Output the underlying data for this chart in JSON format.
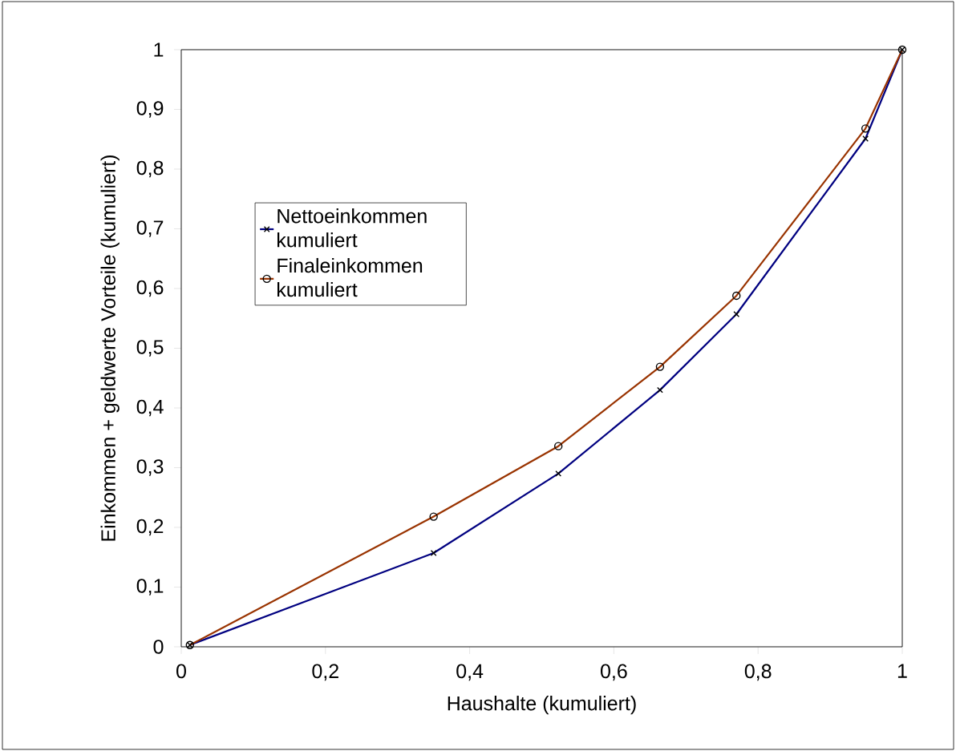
{
  "chart_data": {
    "type": "line",
    "xlabel": "Haushalte (kumuliert)",
    "ylabel": "Einkommen + geldwerte Vorteile (kumuliert)",
    "xlim": [
      0,
      1
    ],
    "ylim": [
      0,
      1
    ],
    "xticks": [
      0,
      {
        "value": 0.2,
        "label": "0,2"
      },
      {
        "value": 0.4,
        "label": "0,4"
      },
      {
        "value": 0.6,
        "label": "0,6"
      },
      {
        "value": 0.8,
        "label": "0,8"
      },
      1
    ],
    "yticks": [
      0,
      {
        "value": 0.1,
        "label": "0,1"
      },
      {
        "value": 0.2,
        "label": "0,2"
      },
      {
        "value": 0.3,
        "label": "0,3"
      },
      {
        "value": 0.4,
        "label": "0,4"
      },
      {
        "value": 0.5,
        "label": "0,5"
      },
      {
        "value": 0.6,
        "label": "0,6"
      },
      {
        "value": 0.7,
        "label": "0,7"
      },
      {
        "value": 0.8,
        "label": "0,8"
      },
      {
        "value": 0.9,
        "label": "0,9"
      },
      1
    ],
    "grid": false,
    "legend": "left",
    "line_style": "solid",
    "series": [
      {
        "name": "Nettoeinkommen kumuliert",
        "color": "#000080",
        "marker": "cross",
        "x": [
          0.012,
          0.35,
          0.523,
          0.664,
          0.77,
          0.949,
          1
        ],
        "values": [
          0.003,
          0.157,
          0.29,
          0.43,
          0.557,
          0.851,
          1
        ]
      },
      {
        "name": "Finaleinkommen kumuliert",
        "color": "#993300",
        "marker": "circle",
        "x": [
          0.012,
          0.35,
          0.523,
          0.664,
          0.77,
          0.949,
          1
        ],
        "values": [
          0.003,
          0.218,
          0.336,
          0.469,
          0.588,
          0.868,
          1
        ]
      }
    ]
  }
}
